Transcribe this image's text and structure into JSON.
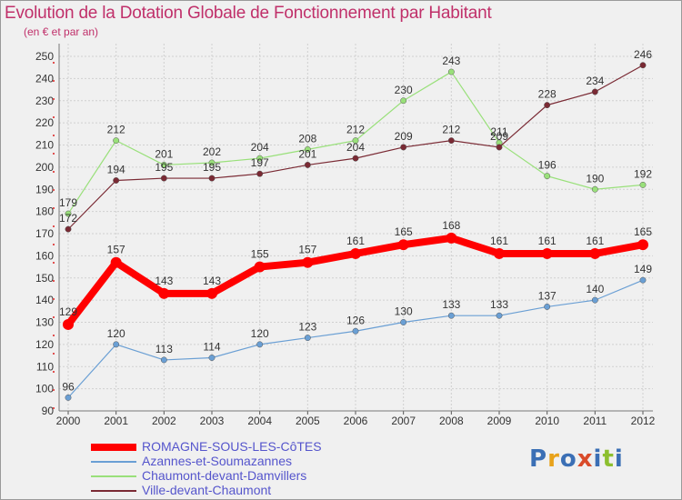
{
  "title": "Evolution de la Dotation Globale de Fonctionnement par Habitant",
  "subtitle": "(en € et par an)",
  "logo": {
    "text": "Proxiti",
    "colors": [
      "#3b6fb5",
      "#e8a21a",
      "#3b6fb5",
      "#d94b2a",
      "#3b6fb5",
      "#8dbf2f",
      "#3b6fb5"
    ]
  },
  "chart_data": {
    "type": "line",
    "title": "Evolution de la Dotation Globale de Fonctionnement par Habitant",
    "ylabel": "(en € et par an)",
    "xlabel": "",
    "ylim": [
      90,
      250
    ],
    "yticks": [
      90,
      100,
      110,
      120,
      130,
      140,
      150,
      160,
      170,
      180,
      190,
      200,
      210,
      220,
      230,
      240,
      250
    ],
    "grid": true,
    "legend_position": "bottom-left",
    "categories": [
      "2000",
      "2001",
      "2002",
      "2003",
      "2004",
      "2005",
      "2006",
      "2007",
      "2008",
      "2009",
      "2010",
      "2011",
      "2012"
    ],
    "series": [
      {
        "name": "ROMAGNE-SOUS-LES-CôTES",
        "color": "#ff0000",
        "width": 8,
        "marker": 6,
        "values": [
          129,
          157,
          143,
          143,
          155,
          157,
          161,
          165,
          168,
          161,
          161,
          161,
          165
        ]
      },
      {
        "name": "Azannes-et-Soumazannes",
        "color": "#6a9fd4",
        "width": 1.2,
        "marker": 3.2,
        "values": [
          96,
          120,
          113,
          114,
          120,
          123,
          126,
          130,
          133,
          133,
          137,
          140,
          149
        ]
      },
      {
        "name": "Chaumont-devant-Damvillers",
        "color": "#99e07a",
        "width": 1.2,
        "marker": 3.2,
        "values": [
          179,
          212,
          201,
          202,
          204,
          208,
          212,
          230,
          243,
          211,
          196,
          190,
          192
        ]
      },
      {
        "name": "Ville-devant-Chaumont",
        "color": "#7a2a34",
        "width": 1.2,
        "marker": 3.2,
        "values": [
          172,
          194,
          195,
          195,
          197,
          201,
          204,
          209,
          212,
          209,
          228,
          234,
          246
        ]
      }
    ]
  }
}
